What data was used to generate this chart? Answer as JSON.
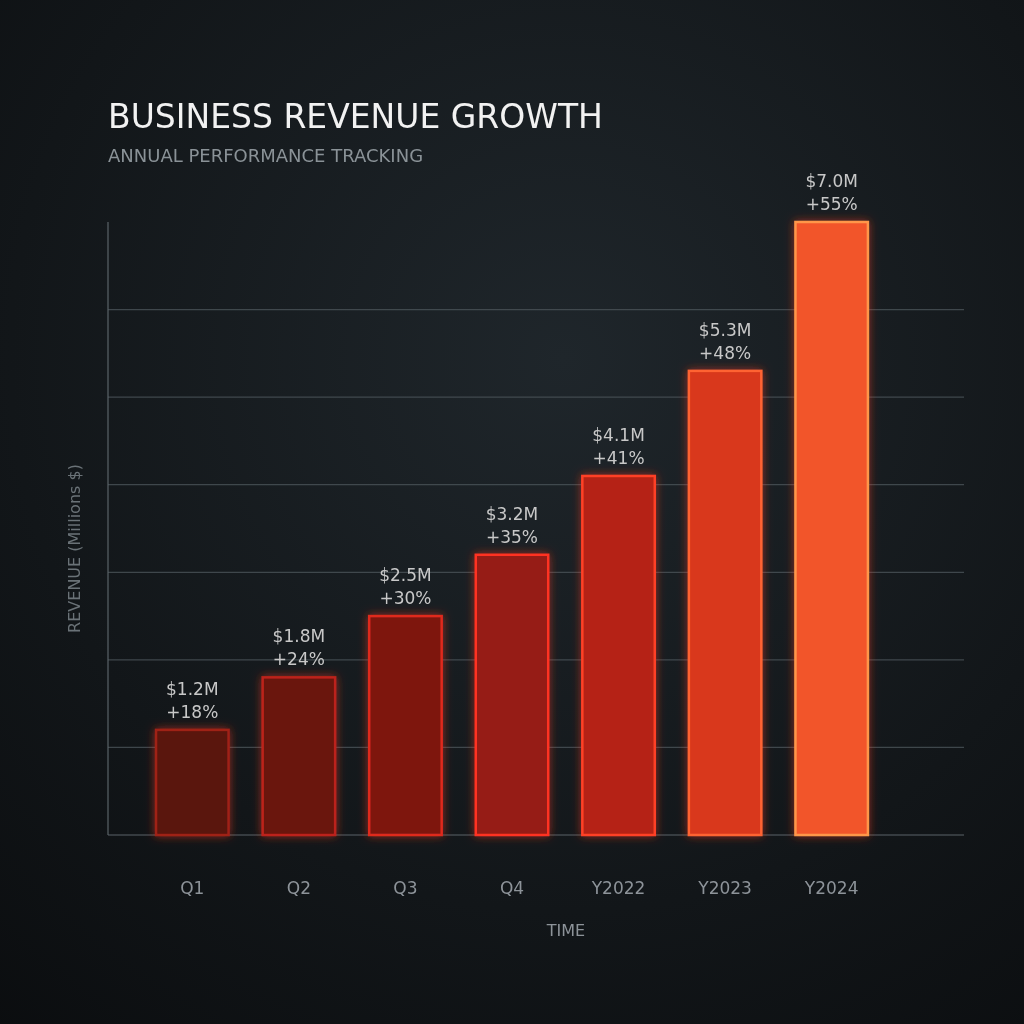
{
  "chart_data": {
    "type": "bar",
    "title": "BUSINESS REVENUE GROWTH",
    "subtitle": "ANNUAL PERFORMANCE TRACKING",
    "xlabel": "TIME",
    "ylabel": "REVENUE (Millions $)",
    "categories": [
      "Q1",
      "Q2",
      "Q3",
      "Q4",
      "Y2022",
      "Y2023",
      "Y2024"
    ],
    "values": [
      1.2,
      1.8,
      2.5,
      3.2,
      4.1,
      5.3,
      7.0
    ],
    "value_labels": [
      "$1.2M",
      "$1.8M",
      "$2.5M",
      "$3.2M",
      "$4.1M",
      "$5.3M",
      "$7.0M"
    ],
    "annotations": [
      {
        "text": "+18%",
        "x": "Q1",
        "y": 1.2
      },
      {
        "text": "+24%",
        "x": "Q2",
        "y": 1.8
      },
      {
        "text": "+30%",
        "x": "Q3",
        "y": 2.5
      },
      {
        "text": "+35%",
        "x": "Q4",
        "y": 3.2
      },
      {
        "text": "+41%",
        "x": "Y2022",
        "y": 4.1
      },
      {
        "text": "+48%",
        "x": "Y2023",
        "y": 5.3
      },
      {
        "text": "+55%",
        "x": "Y2024",
        "y": 7.0
      }
    ],
    "colors": [
      "#5a120e",
      "#6a140f",
      "#7e1811",
      "#961c13",
      "#b52416",
      "#d9381d",
      "#f2552a"
    ],
    "grid": "y",
    "tick_labels": "x"
  }
}
